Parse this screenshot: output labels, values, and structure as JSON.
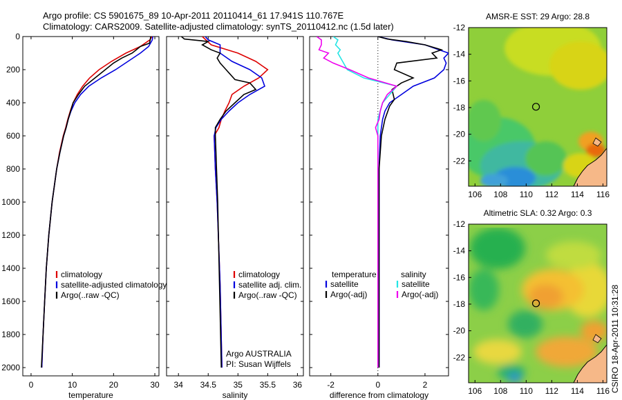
{
  "header": {
    "line1": "Argo profile: CS 5901675_89 10-Apr-2011 20110414_61 17.941S 110.767E",
    "line2": "Climatology: CARS2009. Satellite-adjusted climatology: synTS_20110412.nc (1.5d later)"
  },
  "side_label": "CSIRO 18-Apr-2011 10:31:28",
  "colors": {
    "red": "#dd0000",
    "blue": "#0000dd",
    "black": "#000000",
    "cyan": "#22e5e5",
    "magenta": "#ee00ee"
  },
  "chart_data": [
    {
      "id": "temperature",
      "type": "line",
      "xlabel": "temperature",
      "ylabel": "",
      "xlim": [
        -2,
        31
      ],
      "ylim": [
        2050,
        0
      ],
      "xticks": [
        0,
        10,
        20,
        30
      ],
      "yticks": [
        0,
        200,
        400,
        600,
        800,
        1000,
        1200,
        1400,
        1600,
        1800,
        2000
      ],
      "legend": {
        "position": "lower-right",
        "entries": [
          {
            "label": "climatology",
            "color": "#dd0000"
          },
          {
            "label": "satellite-adjusted climatology",
            "color": "#0000dd"
          },
          {
            "label": "Argo(..raw -QC)",
            "color": "#000000"
          }
        ]
      },
      "series": [
        {
          "name": "climatology",
          "color": "#dd0000",
          "depth": [
            0,
            20,
            60,
            100,
            150,
            200,
            250,
            300,
            350,
            400,
            450,
            500,
            550,
            600,
            700,
            800,
            1000,
            1200,
            1400,
            1600,
            1800,
            2000
          ],
          "values": [
            29.3,
            28.8,
            26.5,
            23,
            19.5,
            16.5,
            14.2,
            12.5,
            11.2,
            10.2,
            9.5,
            8.9,
            8.4,
            7.8,
            6.9,
            6.2,
            5.1,
            4.3,
            3.7,
            3.3,
            2.9,
            2.6
          ]
        },
        {
          "name": "satellite-adjusted climatology",
          "color": "#0000dd",
          "depth": [
            0,
            20,
            60,
            100,
            150,
            200,
            250,
            300,
            350,
            400,
            450,
            500,
            550,
            600,
            700,
            800,
            1000,
            1200,
            1400,
            1600,
            1800,
            2000
          ],
          "values": [
            29.5,
            29.4,
            28.5,
            26.5,
            23.5,
            20.5,
            17.0,
            14.0,
            12.0,
            10.6,
            9.7,
            9.0,
            8.5,
            7.9,
            7.0,
            6.2,
            5.1,
            4.3,
            3.7,
            3.3,
            2.9,
            2.6
          ]
        },
        {
          "name": "Argo(..raw -QC)",
          "color": "#000000",
          "depth": [
            0,
            15,
            40,
            60,
            80,
            100,
            130,
            160,
            200,
            250,
            300,
            350,
            400,
            450,
            500,
            550,
            600,
            700,
            800,
            1000,
            1200,
            1400,
            1600,
            1800,
            2000
          ],
          "values": [
            29.0,
            28.9,
            28.7,
            26.5,
            25.5,
            24.5,
            22.0,
            20.0,
            18.0,
            15.5,
            13.0,
            11.5,
            10.2,
            9.6,
            9.0,
            8.5,
            7.9,
            7.0,
            6.2,
            5.1,
            4.3,
            3.7,
            3.3,
            2.9,
            2.5
          ]
        }
      ]
    },
    {
      "id": "salinity",
      "type": "line",
      "xlabel": "salinity",
      "xlim": [
        33.8,
        36.1
      ],
      "ylim": [
        2050,
        0
      ],
      "xticks": [
        34,
        34.5,
        35,
        35.5,
        36
      ],
      "legend": {
        "position": "lower-right",
        "entries": [
          {
            "label": "climatology",
            "color": "#dd0000"
          },
          {
            "label": "satellite adj. clim.",
            "color": "#0000dd"
          },
          {
            "label": "Argo(..raw -QC)",
            "color": "#000000"
          }
        ]
      },
      "annotation": [
        "Argo AUSTRALIA",
        "PI: Susan Wijffels"
      ],
      "series": [
        {
          "name": "climatology",
          "color": "#dd0000",
          "depth": [
            0,
            50,
            100,
            150,
            200,
            250,
            300,
            350,
            400,
            450,
            500,
            550,
            600,
            800,
            1000,
            1500,
            2000
          ],
          "values": [
            34.4,
            34.55,
            35.0,
            35.3,
            35.5,
            35.35,
            35.1,
            34.9,
            34.85,
            34.78,
            34.72,
            34.68,
            34.6,
            34.62,
            34.65,
            34.7,
            34.73
          ]
        },
        {
          "name": "satellite adj. clim.",
          "color": "#0000dd",
          "depth": [
            0,
            20,
            50,
            100,
            150,
            200,
            250,
            300,
            350,
            400,
            450,
            500,
            550,
            600,
            800,
            1000,
            1500,
            2000
          ],
          "values": [
            34.45,
            34.5,
            34.7,
            34.7,
            34.9,
            35.2,
            35.4,
            35.45,
            35.2,
            35.0,
            34.85,
            34.72,
            34.63,
            34.6,
            34.62,
            34.65,
            34.7,
            34.73
          ]
        },
        {
          "name": "Argo(..raw -QC)",
          "color": "#000000",
          "depth": [
            0,
            15,
            30,
            50,
            80,
            100,
            130,
            160,
            200,
            220,
            260,
            280,
            320,
            350,
            400,
            450,
            500,
            550,
            600,
            700,
            800,
            1000,
            2000
          ],
          "values": [
            34.05,
            34.1,
            34.5,
            34.4,
            34.55,
            34.7,
            34.65,
            34.7,
            34.8,
            34.85,
            34.95,
            35.2,
            35.3,
            35.1,
            34.95,
            34.8,
            34.7,
            34.62,
            34.62,
            34.63,
            34.64,
            34.66,
            34.72
          ]
        }
      ]
    },
    {
      "id": "difference",
      "type": "line",
      "xlabel": "difference from climatology",
      "xlim": [
        -2.9,
        3.0
      ],
      "ylim": [
        2050,
        0
      ],
      "xticks": [
        -2,
        0,
        2
      ],
      "zero_line": 0,
      "legend": {
        "position": "lower-right",
        "entries": [
          {
            "label": "temperature",
            "color": ""
          },
          {
            "label": "salinity",
            "color": ""
          },
          {
            "label": "satellite",
            "color": "#0000dd"
          },
          {
            "label": "satellite",
            "color": "#22e5e5"
          },
          {
            "label": "Argo(-adj)",
            "color": "#000000"
          },
          {
            "label": "Argo(-adj)",
            "color": "#ee00ee"
          }
        ]
      },
      "series": [
        {
          "name": "temperature satellite",
          "color": "#0000dd",
          "depth": [
            0,
            20,
            50,
            80,
            100,
            130,
            160,
            200,
            250,
            300,
            350,
            400,
            450,
            500,
            600,
            800,
            1000,
            1200,
            1500,
            2000
          ],
          "values": [
            0.0,
            0.6,
            2.0,
            2.6,
            3.0,
            2.8,
            2.9,
            2.8,
            2.4,
            1.5,
            1.0,
            0.5,
            0.3,
            0.2,
            0.1,
            0.05,
            0.05,
            0.05,
            0.05,
            0.05
          ]
        },
        {
          "name": "temperature Argo(-adj)",
          "color": "#000000",
          "depth": [
            0,
            15,
            30,
            50,
            80,
            100,
            130,
            160,
            200,
            250,
            280,
            320,
            380,
            420,
            500,
            600,
            800,
            1000,
            2000
          ],
          "values": [
            0.0,
            0.4,
            1.2,
            2.0,
            2.7,
            2.3,
            2.5,
            0.8,
            0.7,
            1.5,
            1.0,
            0.6,
            0.7,
            0.5,
            0.3,
            0.15,
            0.05,
            0.05,
            0.05
          ]
        },
        {
          "name": "salinity satellite",
          "color": "#22e5e5",
          "depth": [
            0,
            20,
            50,
            80,
            100,
            150,
            200,
            250,
            300,
            350,
            400,
            450,
            500,
            550,
            600,
            800,
            1000,
            2000
          ],
          "values": [
            -1.9,
            -1.7,
            -1.8,
            -1.6,
            -1.7,
            -1.5,
            -1.3,
            -0.6,
            0.8,
            0.5,
            0.2,
            0.1,
            0.0,
            0.0,
            0.0,
            0.0,
            0.0,
            0.0
          ]
        },
        {
          "name": "salinity Argo(-adj)",
          "color": "#ee00ee",
          "depth": [
            0,
            20,
            50,
            80,
            100,
            130,
            160,
            200,
            250,
            300,
            350,
            400,
            450,
            500,
            550,
            600,
            800,
            1000,
            2000
          ],
          "values": [
            -2.6,
            -2.4,
            -2.4,
            -2.5,
            -2.1,
            -2.3,
            -1.9,
            -1.2,
            -0.4,
            0.8,
            0.4,
            0.2,
            0.1,
            0.05,
            -0.1,
            0.0,
            0.0,
            0.0,
            0.0
          ]
        }
      ]
    },
    {
      "id": "sst_map",
      "type": "heatmap",
      "title": "AMSR-E SST: 29 Argo: 28.8",
      "xlim": [
        105.5,
        116.3
      ],
      "ylim": [
        -23.9,
        -12
      ],
      "xticks": [
        106,
        108,
        110,
        112,
        114,
        116
      ],
      "yticks": [
        -12,
        -14,
        -16,
        -18,
        -20,
        -22
      ],
      "marker": {
        "lon": 110.767,
        "lat": -17.941
      }
    },
    {
      "id": "sla_map",
      "type": "heatmap",
      "title": "Altimetric SLA: 0.32 Argo: 0.3",
      "xlim": [
        105.5,
        116.3
      ],
      "ylim": [
        -23.9,
        -12
      ],
      "xticks": [
        106,
        108,
        110,
        112,
        114,
        116
      ],
      "yticks": [
        -12,
        -14,
        -16,
        -18,
        -20,
        -22
      ],
      "marker": {
        "lon": 110.767,
        "lat": -17.941
      }
    }
  ]
}
